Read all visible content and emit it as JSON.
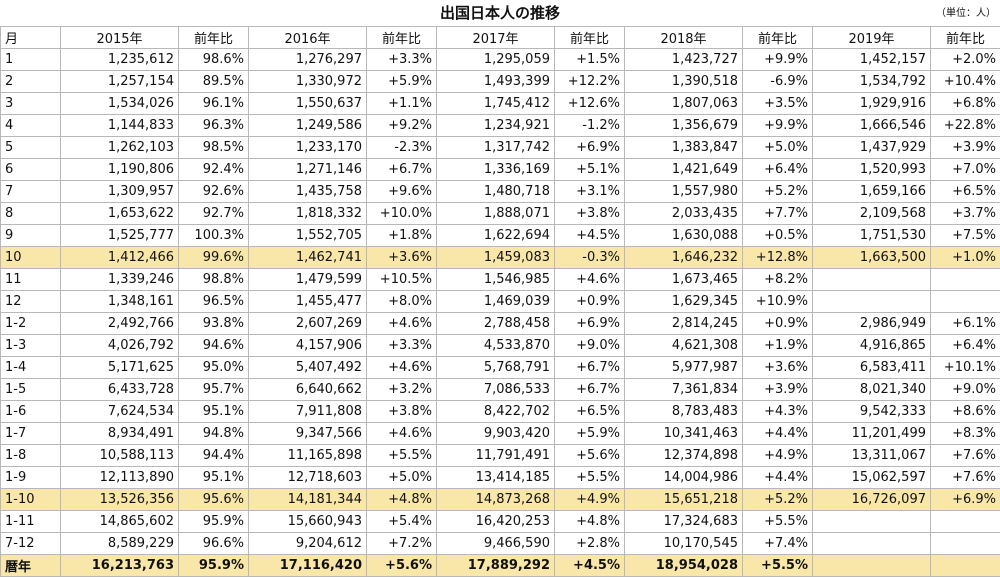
{
  "title": "出国日本人の推移",
  "unit": "（単位：人）",
  "headers": [
    "月",
    "2015年",
    "前年比",
    "2016年",
    "前年比",
    "2017年",
    "前年比",
    "2018年",
    "前年比",
    "2019年",
    "前年比"
  ],
  "rows": [
    [
      "1",
      "1,235,612",
      "98.6%",
      "1,276,297",
      "+3.3%",
      "1,295,059",
      "+1.5%",
      "1,423,727",
      "+9.9%",
      "1,452,157",
      "+2.0%"
    ],
    [
      "2",
      "1,257,154",
      "89.5%",
      "1,330,972",
      "+5.9%",
      "1,493,399",
      "+12.2%",
      "1,390,518",
      "-6.9%",
      "1,534,792",
      "+10.4%"
    ],
    [
      "3",
      "1,534,026",
      "96.1%",
      "1,550,637",
      "+1.1%",
      "1,745,412",
      "+12.6%",
      "1,807,063",
      "+3.5%",
      "1,929,916",
      "+6.8%"
    ],
    [
      "4",
      "1,144,833",
      "96.3%",
      "1,249,586",
      "+9.2%",
      "1,234,921",
      "-1.2%",
      "1,356,679",
      "+9.9%",
      "1,666,546",
      "+22.8%"
    ],
    [
      "5",
      "1,262,103",
      "98.5%",
      "1,233,170",
      "-2.3%",
      "1,317,742",
      "+6.9%",
      "1,383,847",
      "+5.0%",
      "1,437,929",
      "+3.9%"
    ],
    [
      "6",
      "1,190,806",
      "92.4%",
      "1,271,146",
      "+6.7%",
      "1,336,169",
      "+5.1%",
      "1,421,649",
      "+6.4%",
      "1,520,993",
      "+7.0%"
    ],
    [
      "7",
      "1,309,957",
      "92.6%",
      "1,435,758",
      "+9.6%",
      "1,480,718",
      "+3.1%",
      "1,557,980",
      "+5.2%",
      "1,659,166",
      "+6.5%"
    ],
    [
      "8",
      "1,653,622",
      "92.7%",
      "1,818,332",
      "+10.0%",
      "1,888,071",
      "+3.8%",
      "2,033,435",
      "+7.7%",
      "2,109,568",
      "+3.7%"
    ],
    [
      "9",
      "1,525,777",
      "100.3%",
      "1,552,705",
      "+1.8%",
      "1,622,694",
      "+4.5%",
      "1,630,088",
      "+0.5%",
      "1,751,530",
      "+7.5%"
    ],
    [
      "10",
      "1,412,466",
      "99.6%",
      "1,462,741",
      "+3.6%",
      "1,459,083",
      "-0.3%",
      "1,646,232",
      "+12.8%",
      "1,663,500",
      "+1.0%"
    ],
    [
      "11",
      "1,339,246",
      "98.8%",
      "1,479,599",
      "+10.5%",
      "1,546,985",
      "+4.6%",
      "1,673,465",
      "+8.2%",
      "",
      ""
    ],
    [
      "12",
      "1,348,161",
      "96.5%",
      "1,455,477",
      "+8.0%",
      "1,469,039",
      "+0.9%",
      "1,629,345",
      "+10.9%",
      "",
      ""
    ],
    [
      "1-2",
      "2,492,766",
      "93.8%",
      "2,607,269",
      "+4.6%",
      "2,788,458",
      "+6.9%",
      "2,814,245",
      "+0.9%",
      "2,986,949",
      "+6.1%"
    ],
    [
      "1-3",
      "4,026,792",
      "94.6%",
      "4,157,906",
      "+3.3%",
      "4,533,870",
      "+9.0%",
      "4,621,308",
      "+1.9%",
      "4,916,865",
      "+6.4%"
    ],
    [
      "1-4",
      "5,171,625",
      "95.0%",
      "5,407,492",
      "+4.6%",
      "5,768,791",
      "+6.7%",
      "5,977,987",
      "+3.6%",
      "6,583,411",
      "+10.1%"
    ],
    [
      "1-5",
      "6,433,728",
      "95.7%",
      "6,640,662",
      "+3.2%",
      "7,086,533",
      "+6.7%",
      "7,361,834",
      "+3.9%",
      "8,021,340",
      "+9.0%"
    ],
    [
      "1-6",
      "7,624,534",
      "95.1%",
      "7,911,808",
      "+3.8%",
      "8,422,702",
      "+6.5%",
      "8,783,483",
      "+4.3%",
      "9,542,333",
      "+8.6%"
    ],
    [
      "1-7",
      "8,934,491",
      "94.8%",
      "9,347,566",
      "+4.6%",
      "9,903,420",
      "+5.9%",
      "10,341,463",
      "+4.4%",
      "11,201,499",
      "+8.3%"
    ],
    [
      "1-8",
      "10,588,113",
      "94.4%",
      "11,165,898",
      "+5.5%",
      "11,791,491",
      "+5.6%",
      "12,374,898",
      "+4.9%",
      "13,311,067",
      "+7.6%"
    ],
    [
      "1-9",
      "12,113,890",
      "95.1%",
      "12,718,603",
      "+5.0%",
      "13,414,185",
      "+5.5%",
      "14,004,986",
      "+4.4%",
      "15,062,597",
      "+7.6%"
    ],
    [
      "1-10",
      "13,526,356",
      "95.6%",
      "14,181,344",
      "+4.8%",
      "14,873,268",
      "+4.9%",
      "15,651,218",
      "+5.2%",
      "16,726,097",
      "+6.9%"
    ],
    [
      "1-11",
      "14,865,602",
      "95.9%",
      "15,660,943",
      "+5.4%",
      "16,420,253",
      "+4.8%",
      "17,324,683",
      "+5.5%",
      "",
      ""
    ],
    [
      "7-12",
      "8,589,229",
      "96.6%",
      "9,204,612",
      "+7.2%",
      "9,466,590",
      "+2.8%",
      "10,170,545",
      "+7.4%",
      "",
      ""
    ],
    [
      "暦年",
      "16,213,763",
      "95.9%",
      "17,116,420",
      "+5.6%",
      "17,889,292",
      "+4.5%",
      "18,954,028",
      "+5.5%",
      "",
      ""
    ]
  ],
  "highlight_color": "#f8e7a9",
  "border_color": "#b8b8b8"
}
